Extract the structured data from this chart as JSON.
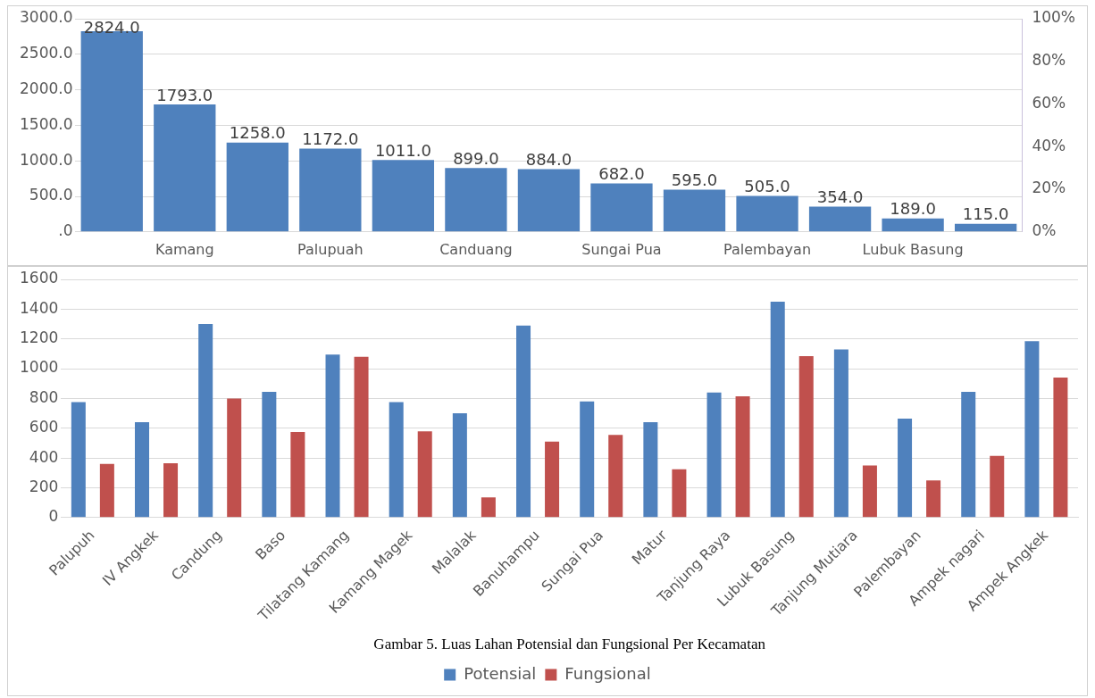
{
  "chart_data": [
    {
      "type": "bar",
      "categories": [
        null,
        "Kamang",
        null,
        "Palupuah",
        null,
        "Canduang",
        null,
        "Sungai Pua",
        null,
        "Palembayan",
        null,
        "Lubuk Basung",
        null
      ],
      "values": [
        2824,
        1793,
        1258,
        1172,
        1011,
        899,
        884,
        682,
        595,
        505,
        354,
        189,
        115
      ],
      "color": "#4f81bd",
      "value_labels": [
        "2824.0",
        "1793.0",
        "1258.0",
        "1172.0",
        "1011.0",
        "899.0",
        "884.0",
        "682.0",
        "595.0",
        "505.0",
        "354.0",
        "189.0",
        "115.0"
      ],
      "ylim": [
        0,
        3000
      ],
      "yticks": [
        {
          "value": 0,
          "label": ".0"
        },
        {
          "value": 500,
          "label": "500.0"
        },
        {
          "value": 1000,
          "label": "1000.0"
        },
        {
          "value": 1500,
          "label": "1500.0"
        },
        {
          "value": 2000,
          "label": "2000.0"
        },
        {
          "value": 2500,
          "label": "2500.0"
        },
        {
          "value": 3000,
          "label": "3000.0"
        }
      ],
      "y2lim": [
        0,
        100
      ],
      "y2ticks": [
        {
          "value": 0,
          "label": "0%"
        },
        {
          "value": 20,
          "label": "20%"
        },
        {
          "value": 40,
          "label": "40%"
        },
        {
          "value": 60,
          "label": "60%"
        },
        {
          "value": 80,
          "label": "80%"
        },
        {
          "value": 100,
          "label": "100%"
        }
      ],
      "grid": "y"
    },
    {
      "type": "bar",
      "categories": [
        "Palupuh",
        "IV Angkek",
        "Candung",
        "Baso",
        "Tilatang Kamang",
        "Kamang Magek",
        "Malalak",
        "Banuhampu",
        "Sungai Pua",
        "Matur",
        "Tanjung Raya",
        "Lubuk Basung",
        "Tanjung Mutiara",
        "Palembayan",
        "Ampek nagari",
        "Ampek Angkek"
      ],
      "series": [
        {
          "name": "Potensial",
          "color": "#4f81bd",
          "values": [
            775,
            640,
            1300,
            845,
            1095,
            775,
            700,
            1290,
            780,
            640,
            840,
            1450,
            1130,
            665,
            845,
            1185
          ]
        },
        {
          "name": "Fungsional",
          "color": "#c0504d",
          "values": [
            360,
            365,
            800,
            575,
            1080,
            580,
            135,
            510,
            555,
            325,
            815,
            1085,
            350,
            250,
            415,
            940
          ]
        }
      ],
      "ylim": [
        0,
        1600
      ],
      "yticks": [
        0,
        200,
        400,
        600,
        800,
        1000,
        1200,
        1400,
        1600
      ],
      "grid": "y",
      "legend": "bottom",
      "annotations": [
        "Gambar 5. Luas Lahan Potensial dan Fungsional Per Kecamatan"
      ]
    }
  ]
}
